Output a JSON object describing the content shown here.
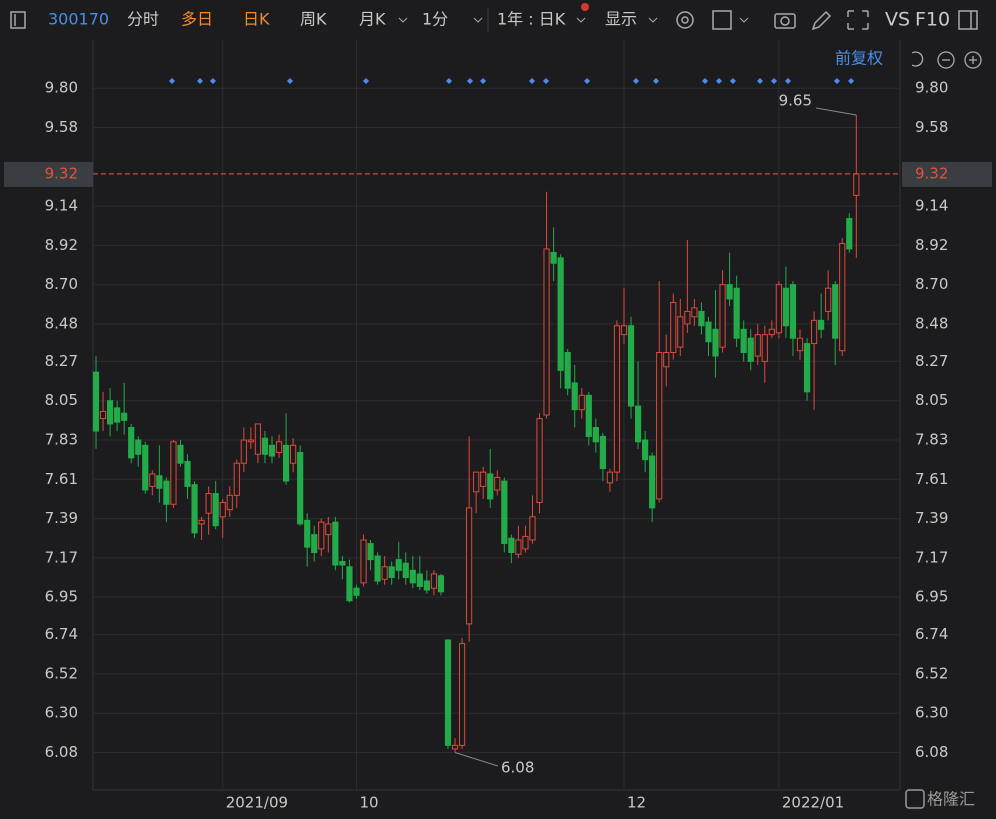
{
  "toolbar": {
    "code": "300170",
    "tabs": [
      "分时",
      "多日",
      "日K",
      "周K",
      "月K",
      "1分"
    ],
    "period": "1年 : 日K",
    "display": "显示",
    "vs": "VS",
    "f10": "F10"
  },
  "adjust": "前复权",
  "watermark": "格隆汇",
  "chart_data": {
    "type": "candlestick",
    "categories": [
      null,
      null,
      null,
      null,
      null,
      null,
      null,
      null,
      null,
      null,
      null,
      null,
      null,
      null,
      null,
      null,
      null,
      null,
      "2021/09",
      null,
      null,
      null,
      null,
      null,
      null,
      null,
      null,
      null,
      null,
      null,
      null,
      null,
      null,
      null,
      null,
      null,
      null,
      "10",
      null,
      null,
      null,
      null,
      null,
      null,
      null,
      null,
      null,
      null,
      null,
      null,
      null,
      null,
      null,
      null,
      null,
      null,
      null,
      null,
      null,
      null,
      null,
      null,
      null,
      null,
      null,
      null,
      null,
      null,
      null,
      null,
      null,
      null,
      null,
      null,
      null,
      "12",
      null,
      null,
      null,
      null,
      null,
      null,
      null,
      null,
      null,
      null,
      null,
      null,
      null,
      null,
      null,
      null,
      null,
      null,
      null,
      null,
      null,
      "2022/01",
      null,
      null,
      null,
      null,
      null,
      null,
      null,
      null,
      null,
      null,
      null
    ],
    "open": [
      8.21,
      7.95,
      8.05,
      8.01,
      7.98,
      7.9,
      7.83,
      7.8,
      7.57,
      7.63,
      7.6,
      7.47,
      7.8,
      7.71,
      7.58,
      7.36,
      7.42,
      7.53,
      7.4,
      7.44,
      7.52,
      7.7,
      7.82,
      7.75,
      7.84,
      7.8,
      7.76,
      7.8,
      7.7,
      7.76,
      7.38,
      7.3,
      7.22,
      7.3,
      7.37,
      7.15,
      7.12,
      7.0,
      7.03,
      7.25,
      7.18,
      7.05,
      7.12,
      7.16,
      7.14,
      7.1,
      7.08,
      7.04,
      7.0,
      7.07,
      6.71,
      6.1,
      6.12,
      6.8,
      7.54,
      7.57,
      7.64,
      7.55,
      7.6,
      7.28,
      7.19,
      7.22,
      7.27,
      7.48,
      7.97,
      8.88,
      8.85,
      8.32,
      8.15,
      8.0,
      8.08,
      7.9,
      7.85,
      7.59,
      7.65,
      8.42,
      8.47,
      8.02,
      7.83,
      7.74,
      7.5,
      8.24,
      8.32,
      8.35,
      8.48,
      8.52,
      8.55,
      8.49,
      8.45,
      8.35,
      8.7,
      8.68,
      8.45,
      8.4,
      8.3,
      8.27,
      8.42,
      8.43,
      8.68,
      8.7,
      8.33,
      8.37,
      8.37,
      8.5,
      8.55,
      8.7,
      8.33,
      9.07,
      9.2
    ],
    "high": [
      8.3,
      8.1,
      8.12,
      8.05,
      8.15,
      7.92,
      7.85,
      7.82,
      7.66,
      7.8,
      7.62,
      7.83,
      7.83,
      7.75,
      7.6,
      7.4,
      7.57,
      7.6,
      7.5,
      7.57,
      7.72,
      7.9,
      7.9,
      7.92,
      7.88,
      7.85,
      7.86,
      7.98,
      7.84,
      7.8,
      7.42,
      7.35,
      7.39,
      7.4,
      7.4,
      7.18,
      7.16,
      7.02,
      7.3,
      7.27,
      7.2,
      7.18,
      7.15,
      7.26,
      7.2,
      7.18,
      7.18,
      7.1,
      7.1,
      7.08,
      6.71,
      6.16,
      6.72,
      7.85,
      7.65,
      7.68,
      7.78,
      7.66,
      7.62,
      7.3,
      7.35,
      7.35,
      7.52,
      7.98,
      9.22,
      9.02,
      8.87,
      8.34,
      8.25,
      8.12,
      8.1,
      7.95,
      7.87,
      7.67,
      8.5,
      8.68,
      8.52,
      8.27,
      7.88,
      7.76,
      8.72,
      8.42,
      8.65,
      8.62,
      8.95,
      8.62,
      8.6,
      8.52,
      8.67,
      8.78,
      8.88,
      8.75,
      8.5,
      8.45,
      8.48,
      8.47,
      8.5,
      8.72,
      8.8,
      8.72,
      8.45,
      8.4,
      8.55,
      8.65,
      8.78,
      8.72,
      8.96,
      9.1,
      9.65
    ],
    "low": [
      7.78,
      7.88,
      7.85,
      7.88,
      7.86,
      7.7,
      7.68,
      7.53,
      7.52,
      7.48,
      7.37,
      7.45,
      7.68,
      7.5,
      7.28,
      7.27,
      7.3,
      7.33,
      7.28,
      7.4,
      7.45,
      7.65,
      7.78,
      7.7,
      7.7,
      7.7,
      7.73,
      7.58,
      7.65,
      7.35,
      7.12,
      7.15,
      7.18,
      7.2,
      7.1,
      7.05,
      6.92,
      6.94,
      7.01,
      7.1,
      7.02,
      7.02,
      7.02,
      7.05,
      7.02,
      7.0,
      6.99,
      6.97,
      6.96,
      6.96,
      6.1,
      6.08,
      6.1,
      6.7,
      7.42,
      7.5,
      7.45,
      7.52,
      7.2,
      7.14,
      7.17,
      7.2,
      7.25,
      7.42,
      7.95,
      8.72,
      8.12,
      8.08,
      7.9,
      7.95,
      7.8,
      7.76,
      7.6,
      7.54,
      7.6,
      8.37,
      7.95,
      7.78,
      7.65,
      7.37,
      7.48,
      8.13,
      8.28,
      8.3,
      8.43,
      8.47,
      8.42,
      8.3,
      8.18,
      8.32,
      8.58,
      8.35,
      8.27,
      8.22,
      8.25,
      8.15,
      8.4,
      8.4,
      8.4,
      8.3,
      8.28,
      8.05,
      8.0,
      8.4,
      8.5,
      8.25,
      8.3,
      8.88,
      8.85
    ],
    "close": [
      7.88,
      7.99,
      7.92,
      7.93,
      7.94,
      7.73,
      7.75,
      7.55,
      7.64,
      7.56,
      7.47,
      7.82,
      7.7,
      7.57,
      7.31,
      7.38,
      7.53,
      7.35,
      7.48,
      7.52,
      7.7,
      7.83,
      7.83,
      7.92,
      7.75,
      7.74,
      7.82,
      7.6,
      7.8,
      7.36,
      7.23,
      7.2,
      7.37,
      7.36,
      7.13,
      7.13,
      6.93,
      6.96,
      7.27,
      7.16,
      7.04,
      7.12,
      7.06,
      7.1,
      7.06,
      7.03,
      7.01,
      6.99,
      7.08,
      6.98,
      6.12,
      6.12,
      6.69,
      7.45,
      7.65,
      7.65,
      7.5,
      7.62,
      7.25,
      7.2,
      7.27,
      7.29,
      7.4,
      7.95,
      8.9,
      8.82,
      8.22,
      8.12,
      8.0,
      8.08,
      7.85,
      7.82,
      7.67,
      7.65,
      8.47,
      8.47,
      8.02,
      7.82,
      7.72,
      7.45,
      8.32,
      8.32,
      8.6,
      8.52,
      8.55,
      8.57,
      8.47,
      8.38,
      8.3,
      8.7,
      8.62,
      8.4,
      8.32,
      8.27,
      8.42,
      8.42,
      8.45,
      8.7,
      8.47,
      8.4,
      8.4,
      8.1,
      8.5,
      8.45,
      8.68,
      8.4,
      8.93,
      8.9,
      9.32
    ],
    "up_color": "#e0493a",
    "down_color": "#22ab48",
    "ylim": [
      5.87,
      10.07
    ],
    "yticks": [
      {
        "value": 9.8,
        "label": "9.80"
      },
      9.58,
      {
        "value": 9.14,
        "label": "9.14"
      },
      8.92,
      {
        "value": 8.7,
        "label": "8.70"
      },
      8.48,
      8.27,
      8.05,
      7.83,
      7.61,
      7.39,
      7.17,
      6.95,
      6.74,
      6.52,
      {
        "value": 6.3,
        "label": "6.30"
      },
      6.08
    ],
    "grid": true
  }
}
